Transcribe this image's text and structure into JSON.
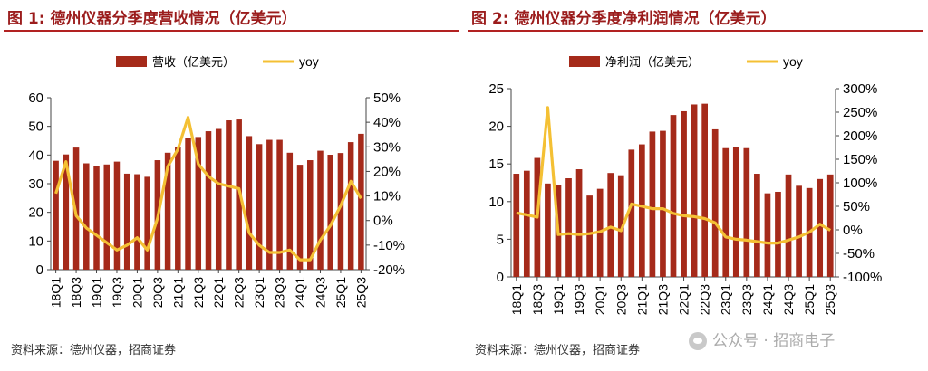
{
  "colors": {
    "bar": "#a52a1a",
    "line": "#f4c034",
    "title": "#9b1c1c",
    "rule": "#b22222"
  },
  "watermark": {
    "icon": "wechat-icon",
    "text": "公众号 · 招商电子"
  },
  "chart_data": [
    {
      "type": "bar",
      "title": "图 1:  德州仪器分季度营收情况（亿美元）",
      "source": "资料来源：德州仪器，招商证券",
      "legend": {
        "bar": "营收（亿美元）",
        "line": "yoy",
        "placement": "top"
      },
      "categories": [
        "18Q1",
        "18Q2",
        "18Q3",
        "18Q4",
        "19Q1",
        "19Q2",
        "19Q3",
        "19Q4",
        "20Q1",
        "20Q2",
        "20Q3",
        "20Q4",
        "21Q1",
        "21Q2",
        "21Q3",
        "21Q4",
        "22Q1",
        "22Q2",
        "22Q3",
        "22Q4",
        "23Q1",
        "23Q2",
        "23Q3",
        "23Q4",
        "24Q1",
        "24Q2",
        "24Q3",
        "24Q4",
        "25Q1",
        "25Q2",
        "25Q3"
      ],
      "tick_labels": [
        "18Q1",
        "18Q3",
        "19Q1",
        "19Q3",
        "20Q1",
        "20Q3",
        "21Q1",
        "21Q3",
        "22Q1",
        "22Q3",
        "23Q1",
        "23Q3",
        "24Q1",
        "24Q3",
        "25Q1",
        "25Q3"
      ],
      "series": [
        {
          "name": "营收（亿美元）",
          "axis": "left",
          "kind": "bar",
          "values": [
            38.0,
            40.2,
            42.6,
            37.1,
            36.0,
            36.7,
            37.7,
            33.5,
            33.3,
            32.4,
            38.2,
            40.8,
            42.9,
            45.8,
            46.3,
            48.3,
            49.1,
            52.1,
            52.4,
            46.6,
            43.8,
            45.3,
            45.3,
            40.8,
            36.6,
            38.2,
            41.5,
            40.1,
            40.7,
            44.5,
            47.4
          ]
        },
        {
          "name": "yoy",
          "axis": "right",
          "kind": "line",
          "values": [
            11,
            24,
            2,
            -3,
            -6,
            -9,
            -12,
            -10,
            -7,
            -12,
            1,
            22,
            29,
            42,
            23,
            18,
            15,
            14,
            13,
            -5,
            -10,
            -13,
            -13,
            -12,
            -16,
            -16,
            -8,
            -2,
            6,
            16,
            9
          ]
        }
      ],
      "y_left": {
        "min": 0,
        "max": 60,
        "ticks": [
          "0",
          "10",
          "20",
          "30",
          "40",
          "50",
          "60"
        ]
      },
      "y_right": {
        "min": -20,
        "max": 50,
        "ticks": [
          "-20%",
          "-10%",
          "0%",
          "10%",
          "20%",
          "30%",
          "40%",
          "50%"
        ]
      }
    },
    {
      "type": "bar",
      "title": "图 2:  德州仪器分季度净利润情况（亿美元）",
      "source": "资料来源：德州仪器，招商证券",
      "legend": {
        "bar": "净利润（亿美元）",
        "line": "yoy",
        "placement": "top"
      },
      "categories": [
        "18Q1",
        "18Q2",
        "18Q3",
        "18Q4",
        "19Q1",
        "19Q2",
        "19Q3",
        "19Q4",
        "20Q1",
        "20Q2",
        "20Q3",
        "20Q4",
        "21Q1",
        "21Q2",
        "21Q3",
        "21Q4",
        "22Q1",
        "22Q2",
        "22Q3",
        "22Q4",
        "23Q1",
        "23Q2",
        "23Q3",
        "23Q4",
        "24Q1",
        "24Q2",
        "24Q3",
        "24Q4",
        "25Q1",
        "25Q2",
        "25Q3"
      ],
      "tick_labels": [
        "18Q1",
        "18Q3",
        "19Q1",
        "19Q3",
        "20Q1",
        "20Q3",
        "21Q1",
        "21Q3",
        "22Q1",
        "22Q3",
        "23Q1",
        "23Q3",
        "24Q1",
        "24Q3",
        "25Q1",
        "25Q3"
      ],
      "series": [
        {
          "name": "净利润（亿美元）",
          "axis": "left",
          "kind": "bar",
          "values": [
            13.7,
            14.1,
            15.8,
            12.4,
            12.2,
            13.1,
            14.3,
            10.8,
            11.7,
            13.8,
            13.5,
            16.9,
            17.6,
            19.3,
            19.4,
            21.5,
            22.0,
            22.9,
            23.0,
            19.6,
            17.1,
            17.2,
            17.1,
            13.7,
            11.1,
            11.3,
            13.6,
            12.1,
            11.8,
            13.0,
            13.6
          ]
        },
        {
          "name": "yoy",
          "axis": "right",
          "kind": "line",
          "values": [
            36,
            32,
            27,
            260,
            -10,
            -8,
            -10,
            -8,
            -4,
            6,
            -2,
            55,
            50,
            45,
            45,
            35,
            30,
            28,
            24,
            15,
            -15,
            -20,
            -22,
            -25,
            -28,
            -28,
            -22,
            -15,
            -5,
            12,
            -1
          ]
        }
      ],
      "y_left": {
        "min": 0,
        "max": 25,
        "ticks": [
          "0",
          "5",
          "10",
          "15",
          "20",
          "25"
        ]
      },
      "y_right": {
        "min": -100,
        "max": 300,
        "ticks": [
          "-100%",
          "-50%",
          "0%",
          "50%",
          "100%",
          "150%",
          "200%",
          "250%",
          "300%"
        ]
      }
    }
  ]
}
